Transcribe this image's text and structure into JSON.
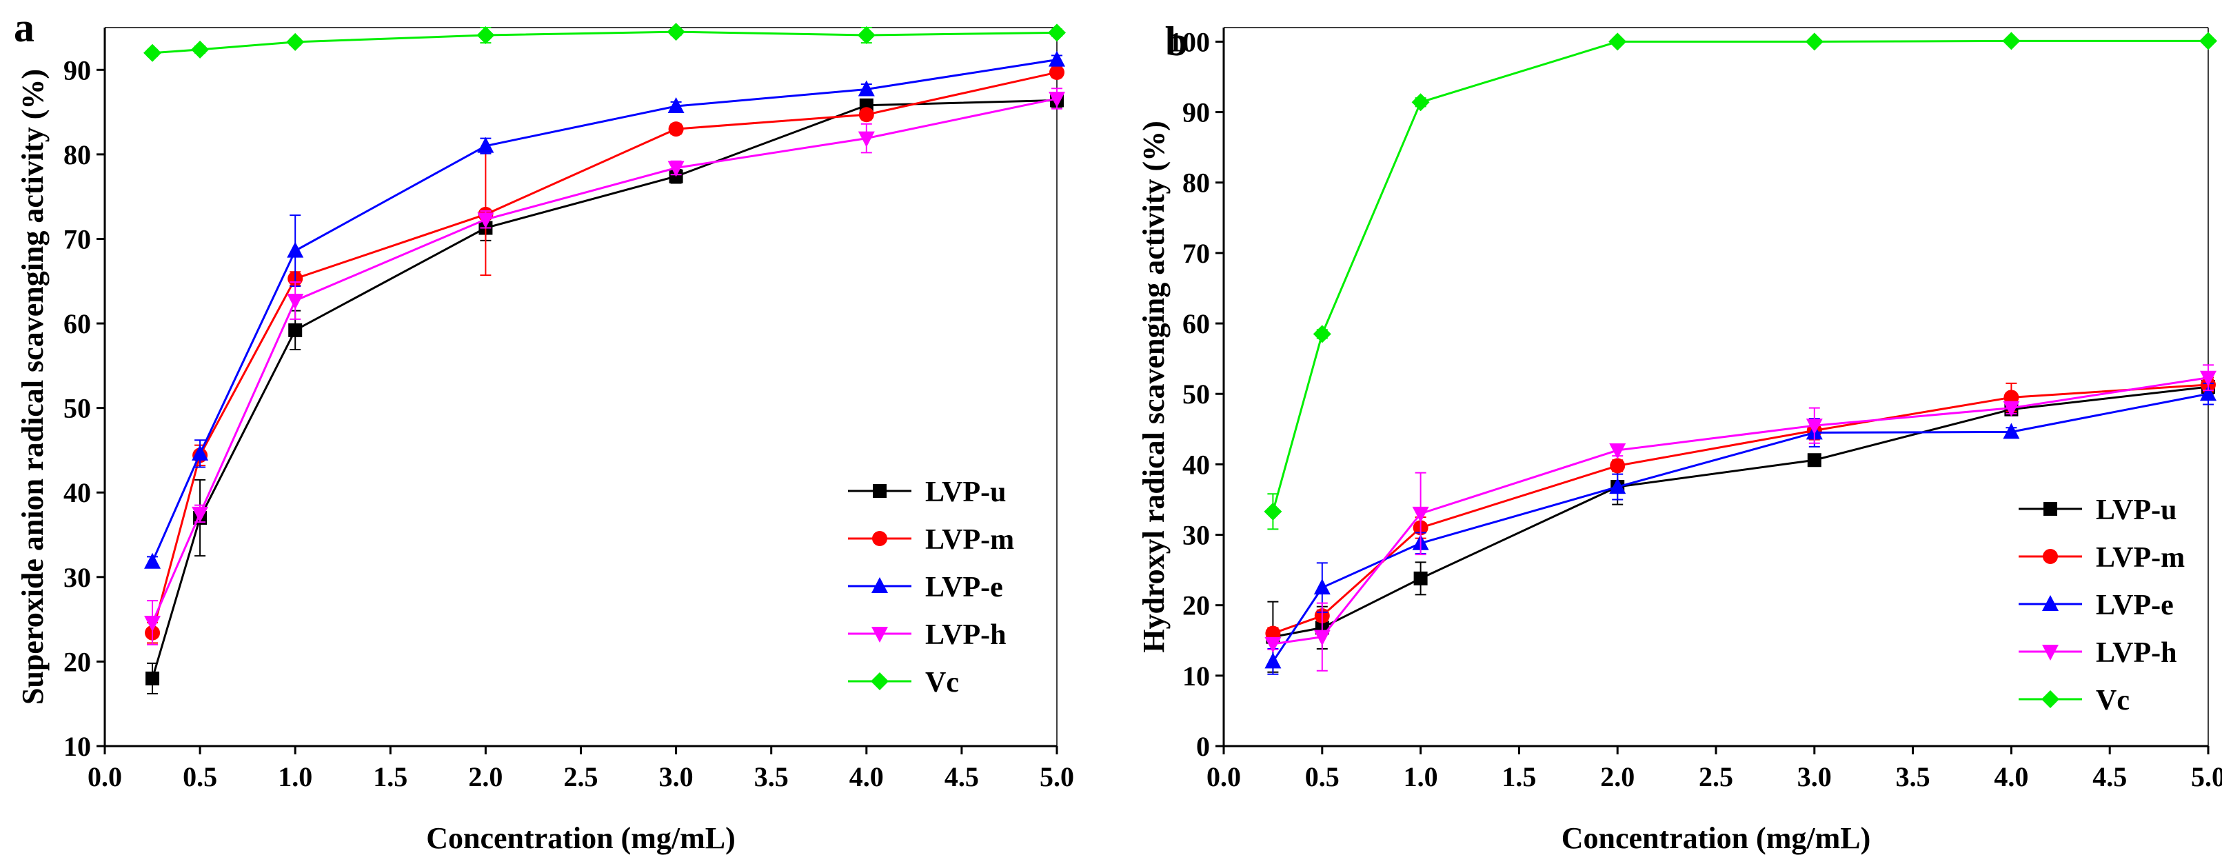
{
  "figure": {
    "panels": [
      {
        "letter": "a",
        "xlabel": "Concentration (mg/mL)",
        "ylabel": "Superoxide anion radical scavenging activity (%)"
      },
      {
        "letter": "b",
        "xlabel": "Concentration (mg/mL)",
        "ylabel": "Hydroxyl radical scavenging activity (%)"
      }
    ]
  },
  "chart_data": [
    {
      "type": "line",
      "panel": "a",
      "title": "",
      "xlabel": "Concentration (mg/mL)",
      "ylabel": "Superoxide anion radical scavenging activity (%)",
      "xlim": [
        0.0,
        5.0
      ],
      "ylim": [
        10,
        95
      ],
      "xticks": [
        "0.0",
        "0.5",
        "1.0",
        "1.5",
        "2.0",
        "2.5",
        "3.0",
        "3.5",
        "4.0",
        "4.5",
        "5.0"
      ],
      "yticks": [
        "10",
        "20",
        "30",
        "40",
        "50",
        "60",
        "70",
        "80",
        "90"
      ],
      "legend_position": "bottom-right",
      "grid": false,
      "x": [
        0.25,
        0.5,
        1,
        2,
        3,
        4,
        5
      ],
      "series": [
        {
          "name": "LVP-u",
          "color": "#000000",
          "marker": "square",
          "values": [
            18.0,
            37.0,
            59.2,
            71.3,
            77.4,
            85.8,
            86.4
          ],
          "errors": [
            1.8,
            4.5,
            2.3,
            1.5,
            0.8,
            0.6,
            0.8
          ]
        },
        {
          "name": "LVP-m",
          "color": "#ff0000",
          "marker": "circle",
          "values": [
            23.4,
            44.4,
            65.3,
            72.9,
            83.0,
            84.7,
            89.7
          ],
          "errors": [
            1.2,
            1.2,
            0.8,
            7.2,
            0.6,
            0.6,
            0.6
          ]
        },
        {
          "name": "LVP-e",
          "color": "#0000ff",
          "marker": "triangle-up",
          "values": [
            31.8,
            44.6,
            68.6,
            81.0,
            85.7,
            87.7,
            91.2
          ],
          "errors": [
            0.6,
            1.6,
            4.2,
            0.9,
            0.5,
            0.6,
            0.5
          ]
        },
        {
          "name": "LVP-h",
          "color": "#ff00ff",
          "marker": "triangle-down",
          "values": [
            24.6,
            37.5,
            62.7,
            72.3,
            78.4,
            81.9,
            86.6
          ],
          "errors": [
            2.6,
            1.0,
            2.2,
            1.0,
            0.8,
            1.7,
            1.2
          ]
        },
        {
          "name": "Vc",
          "color": "#00ee00",
          "marker": "diamond",
          "values": [
            92.0,
            92.4,
            93.3,
            94.1,
            94.5,
            94.1,
            94.4
          ],
          "errors": [
            0.4,
            0.4,
            0.4,
            0.9,
            0.4,
            0.9,
            0.4
          ]
        }
      ]
    },
    {
      "type": "line",
      "panel": "b",
      "title": "",
      "xlabel": "Concentration (mg/mL)",
      "ylabel": "Hydroxyl radical scavenging activity (%)",
      "xlim": [
        0.0,
        5.0
      ],
      "ylim": [
        0,
        102
      ],
      "xticks": [
        "0.0",
        "0.5",
        "1.0",
        "1.5",
        "2.0",
        "2.5",
        "3.0",
        "3.5",
        "4.0",
        "4.5",
        "5.0"
      ],
      "yticks": [
        "0",
        "10",
        "20",
        "30",
        "40",
        "50",
        "60",
        "70",
        "80",
        "90",
        "100"
      ],
      "legend_position": "bottom-right",
      "grid": false,
      "x": [
        0.25,
        0.5,
        1,
        2,
        3,
        4,
        5
      ],
      "series": [
        {
          "name": "LVP-u",
          "color": "#000000",
          "marker": "square",
          "values": [
            15.5,
            16.8,
            23.8,
            36.8,
            40.6,
            47.8,
            51.0
          ],
          "errors": [
            5.0,
            3.0,
            2.3,
            2.5,
            0.8,
            0.8,
            1.0
          ]
        },
        {
          "name": "LVP-m",
          "color": "#ff0000",
          "marker": "circle",
          "values": [
            16.0,
            18.5,
            31.0,
            39.8,
            44.8,
            49.5,
            51.3
          ],
          "errors": [
            0.8,
            0.8,
            1.5,
            0.8,
            1.3,
            2.0,
            1.0
          ]
        },
        {
          "name": "LVP-e",
          "color": "#0000ff",
          "marker": "triangle-up",
          "values": [
            12.0,
            22.5,
            28.8,
            36.8,
            44.5,
            44.6,
            50.0
          ],
          "errors": [
            1.8,
            3.5,
            1.5,
            1.8,
            2.0,
            0.6,
            1.5
          ]
        },
        {
          "name": "LVP-h",
          "color": "#ff00ff",
          "marker": "triangle-down",
          "values": [
            14.5,
            15.5,
            33.0,
            42.0,
            45.5,
            48.0,
            52.3
          ],
          "errors": [
            0.8,
            4.8,
            5.8,
            0.8,
            2.5,
            0.8,
            1.8
          ]
        },
        {
          "name": "Vc",
          "color": "#00ee00",
          "marker": "diamond",
          "values": [
            33.3,
            58.5,
            91.4,
            100.0,
            100.0,
            100.1,
            100.1
          ],
          "errors": [
            2.5,
            0.6,
            0.6,
            0.3,
            0.3,
            0.3,
            0.3
          ]
        }
      ]
    }
  ]
}
